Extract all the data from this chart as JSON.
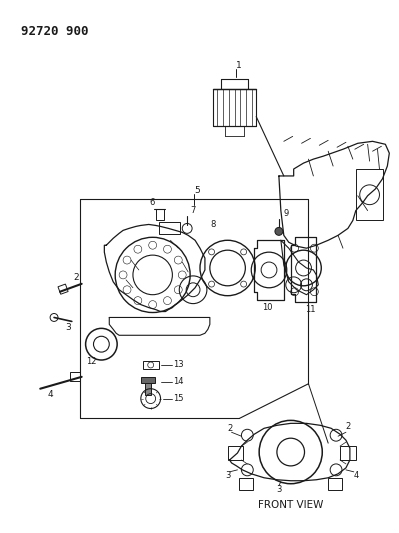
{
  "title": "92720 900",
  "background_color": "#ffffff",
  "line_color": "#1a1a1a",
  "fig_width": 3.99,
  "fig_height": 5.33,
  "dpi": 100
}
